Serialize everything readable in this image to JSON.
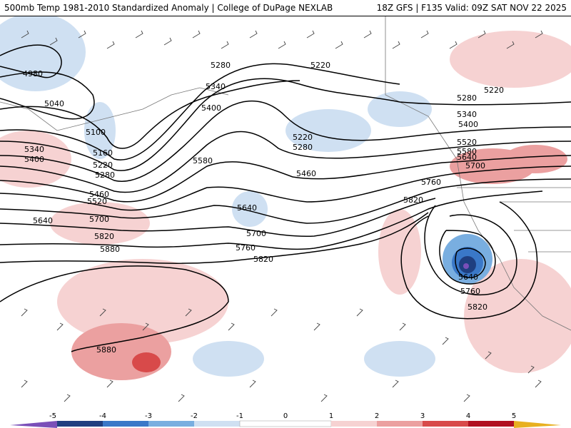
{
  "header": {
    "title_left": "500mb Temp 1981-2010 Standardized Anomaly | College of DuPage NEXLAB",
    "title_right": "18Z GFS | F135 Valid: 09Z SAT NOV 22 2025"
  },
  "contour_labels": [
    "4980",
    "5040",
    "5100",
    "5160",
    "5220",
    "5280",
    "5340",
    "5400",
    "5460",
    "5520",
    "5580",
    "5640",
    "5700",
    "5760",
    "5820",
    "5880"
  ],
  "colors": {
    "neg5": "#7a4fb8",
    "neg4": "#1f3f80",
    "neg3": "#3a78c8",
    "neg2": "#79aee0",
    "neg1": "#cfe0f2",
    "zero": "#ffffff",
    "pos1": "#f6d2d2",
    "pos2": "#eba0a0",
    "pos3": "#d84a4a",
    "pos4": "#b01020",
    "pos5": "#e8b020"
  },
  "colorbar": {
    "ticks": [
      "-5",
      "-4",
      "-3",
      "-2",
      "-1",
      "0",
      "1",
      "2",
      "3",
      "4",
      "5"
    ]
  }
}
